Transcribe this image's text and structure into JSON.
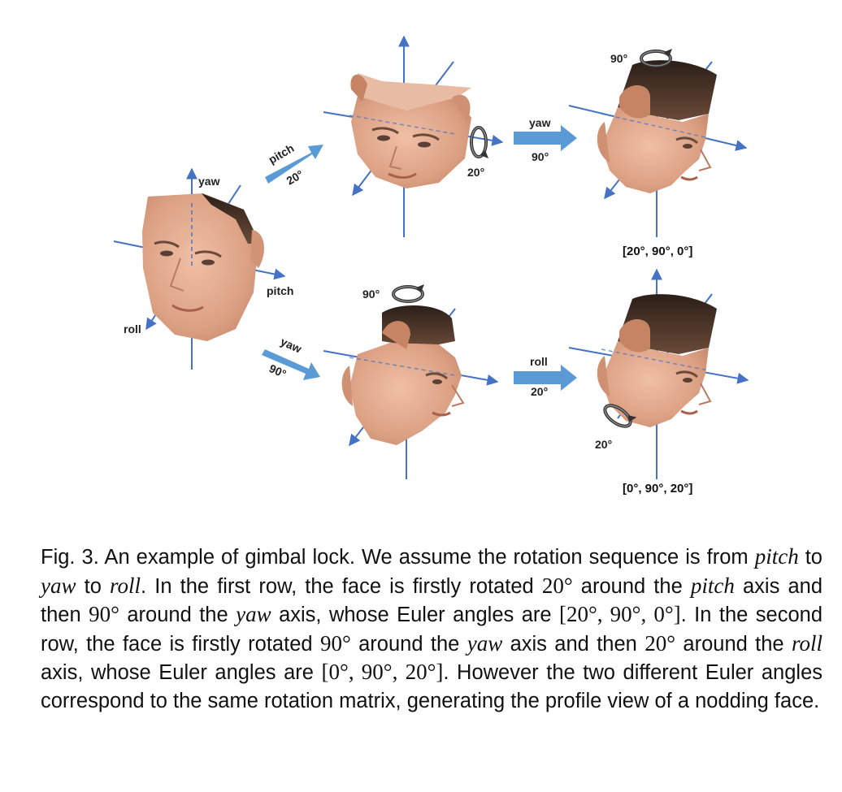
{
  "figure": {
    "panel_base": {
      "axis_labels": {
        "yaw": "yaw",
        "pitch": "pitch",
        "roll": "roll"
      }
    },
    "step_arrows": {
      "row1_pitch": {
        "label": "pitch",
        "angle": "20°"
      },
      "row1_yaw": {
        "label": "yaw",
        "angle": "90°"
      },
      "row2_yaw": {
        "label": "yaw",
        "angle": "90°"
      },
      "row2_roll": {
        "label": "roll",
        "angle": "20°"
      }
    },
    "rotation_badges": {
      "row1_pitch_angle": "20°",
      "row1_yaw_angle": "90°",
      "row2_yaw_angle": "90°",
      "row2_roll_angle": "20°"
    },
    "euler_results": {
      "row1": "[20°, 90°, 0°]",
      "row2": "[0°, 90°, 20°]"
    },
    "colors": {
      "axis": "#4472c4",
      "step_arrow": "#5b9bd5",
      "skin": "#e2a98d",
      "hair": "#3a2a20",
      "rotation_icon": "#333333"
    }
  },
  "caption": {
    "fig_label": "Fig. 3.",
    "s1": " An example of gimbal lock. We assume the rotation sequence is from ",
    "m_pitch": "pitch",
    "s2": " to ",
    "m_yaw": "yaw",
    "s3": " to ",
    "m_roll": "roll",
    "s4": ". In the first row, the face is firstly rotated ",
    "n_20a": "20°",
    "s5": " around the ",
    "m_pitch2": "pitch",
    "s6": " axis and then ",
    "n_90a": "90°",
    "s7": " around the ",
    "m_yaw2": "yaw",
    "s8": " axis, whose Euler angles are ",
    "n_e1": "[20°, 90°, 0°]",
    "s9": ". In the second row, the face is firstly rotated ",
    "n_90b": "90°",
    "s10": " around the ",
    "m_yaw3": "yaw",
    "s11": " axis and then ",
    "n_20b": "20°",
    "s12": " around the ",
    "m_roll2": "roll",
    "s13": " axis, whose Euler angles are ",
    "n_e2": "[0°, 90°, 20°]",
    "s14": ". However the two different Euler angles correspond to the same rotation matrix, generating the profile view of a nodding face."
  }
}
